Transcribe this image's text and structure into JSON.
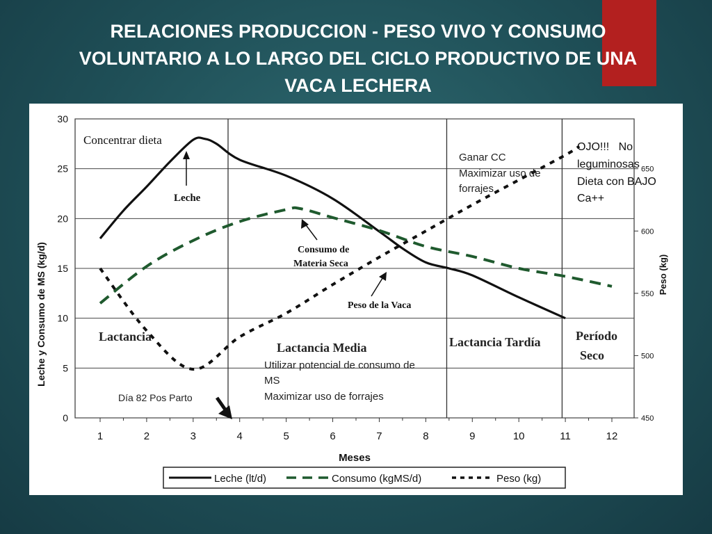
{
  "slide": {
    "title_lines": [
      "RELACIONES PRODUCCION - PESO VIVO Y CONSUMO",
      "VOLUNTARIO A LO LARGO DEL CICLO PRODUCTIVO DE UNA",
      "VACA LECHERA"
    ],
    "accent_color": "#b3201f"
  },
  "chart_data": {
    "type": "line",
    "x": [
      1,
      2,
      3,
      4,
      5,
      6,
      7,
      8,
      9,
      10,
      11,
      12
    ],
    "xlabel": "Meses",
    "ylabel": "Leche y Consumo de MS (kg/d)",
    "y2label": "Peso (kg)",
    "ylim": [
      0,
      30
    ],
    "y2lim": [
      450,
      690
    ],
    "yticks": [
      "0",
      "5",
      "10",
      "15",
      "20",
      "25",
      "30"
    ],
    "y2ticks": [
      "450",
      "500",
      "550",
      "600",
      "650"
    ],
    "xticks": [
      "1",
      "2",
      "3",
      "4",
      "5",
      "6",
      "7",
      "8",
      "9",
      "10",
      "11",
      "12"
    ],
    "grid": true,
    "series": [
      {
        "name": "Leche (lt/d)",
        "axis": "left",
        "style": "solid",
        "color": "#111111",
        "points": [
          [
            1,
            18
          ],
          [
            1.5,
            20.8
          ],
          [
            2,
            23.2
          ],
          [
            2.5,
            25.7
          ],
          [
            3,
            27.9
          ],
          [
            3.25,
            28
          ],
          [
            3.5,
            27.5
          ],
          [
            4,
            25.9
          ],
          [
            5,
            24.3
          ],
          [
            6,
            22
          ],
          [
            7,
            18.7
          ],
          [
            7.5,
            17
          ],
          [
            8,
            15.6
          ],
          [
            8.5,
            15
          ],
          [
            9,
            14.3
          ],
          [
            10,
            12.1
          ],
          [
            11,
            10
          ]
        ]
      },
      {
        "name": "Consumo (kgMS/d)",
        "axis": "left",
        "style": "dash",
        "color": "#1f5a2e",
        "points": [
          [
            1,
            11.5
          ],
          [
            2,
            15.2
          ],
          [
            3,
            17.8
          ],
          [
            4,
            19.7
          ],
          [
            5,
            20.9
          ],
          [
            5.3,
            21
          ],
          [
            6,
            20.1
          ],
          [
            7,
            18.8
          ],
          [
            8,
            17.2
          ],
          [
            9,
            16.2
          ],
          [
            10,
            15
          ],
          [
            11,
            14.2
          ],
          [
            12,
            13.2
          ]
        ]
      },
      {
        "name": "Peso (kg)",
        "axis": "right",
        "style": "dot",
        "color": "#111111",
        "points": [
          [
            1,
            570
          ],
          [
            2,
            520
          ],
          [
            3,
            489
          ],
          [
            4,
            515
          ],
          [
            5,
            534
          ],
          [
            6,
            557
          ],
          [
            7,
            579
          ],
          [
            8,
            600
          ],
          [
            9,
            621
          ],
          [
            10,
            641
          ],
          [
            11,
            661
          ],
          [
            11.3,
            668
          ]
        ]
      }
    ],
    "legend_position": "bottom",
    "legend": [
      "Leche (lt/d)",
      "Consumo (kgMS/d)",
      "Peso (kg)"
    ],
    "annotations": {
      "concentrar": "Concentrar dieta",
      "leche": "Leche",
      "consumo_l1": "Consumo de",
      "consumo_l2": "Materia Seca",
      "peso_vaca": "Peso de la Vaca",
      "ganar_l1": "Ganar CC",
      "ganar_l2": "Maximizar uso de",
      "ganar_l3": "forrajes",
      "ojo_l1": "OJO!!!   No",
      "ojo_l2": "leguminosas",
      "ojo_l3": "Dieta con BAJO",
      "ojo_l4": "Ca++",
      "lactancia": "Lactancia",
      "lactancia_media": "Lactancia Media",
      "utilizar_l1": "Utilizar potencial de consumo de",
      "utilizar_l2": "MS",
      "utilizar_l3": "Maximizar uso de forrajes",
      "lactancia_tardia": "Lactancia Tardía",
      "periodo": "Período",
      "seco": "Seco",
      "dia82": "Día 82 Pos Parto"
    }
  }
}
